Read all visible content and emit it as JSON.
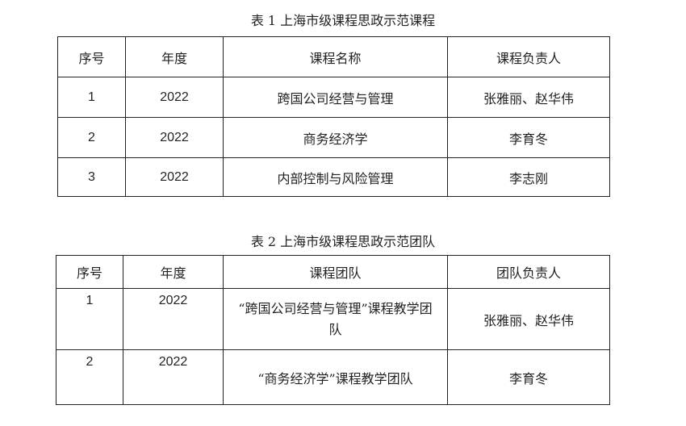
{
  "table1": {
    "title": "表 1  上海市级课程思政示范课程",
    "headers": [
      "序号",
      "年度",
      "课程名称",
      "课程负责人"
    ],
    "rows": [
      [
        "1",
        "2022",
        "跨国公司经营与管理",
        "张雅丽、赵华伟"
      ],
      [
        "2",
        "2022",
        "商务经济学",
        "李育冬"
      ],
      [
        "3",
        "2022",
        "内部控制与风险管理",
        "李志刚"
      ]
    ]
  },
  "table2": {
    "title": "表 2  上海市级课程思政示范团队",
    "headers": [
      "序号",
      "年度",
      "课程团队",
      "团队负责人"
    ],
    "rows": [
      [
        "1",
        "2022",
        "“跨国公司经营与管理”课程教学团队",
        "张雅丽、赵华伟"
      ],
      [
        "2",
        "2022",
        "“商务经济学”课程教学团队",
        "李育冬"
      ]
    ]
  }
}
